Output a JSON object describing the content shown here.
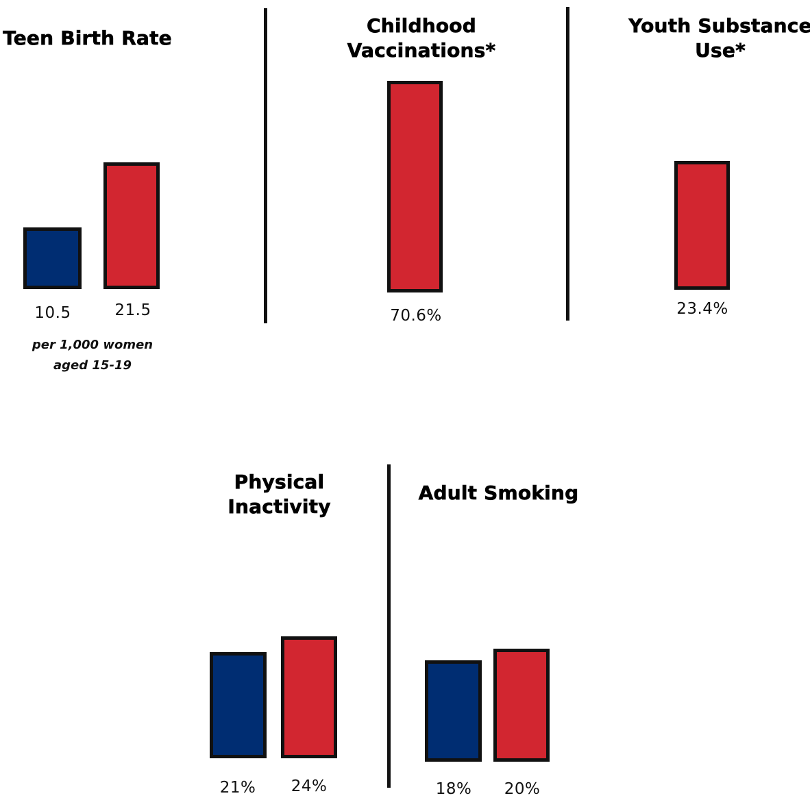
{
  "colors": {
    "blue": "#002D72",
    "red": "#D22630",
    "outline": "#111111"
  },
  "chart_data": [
    {
      "type": "bar",
      "title": "Teen Birth Rate",
      "categories": [
        "",
        ""
      ],
      "values": [
        10.5,
        21.5
      ],
      "value_labels": [
        "10.5",
        "21.5"
      ],
      "bar_colors": [
        "#002D72",
        "#D22630"
      ],
      "note": [
        "per 1,000 women",
        "aged 15-19"
      ]
    },
    {
      "type": "bar",
      "title": "Childhood Vaccinations*",
      "categories": [
        ""
      ],
      "values": [
        70.6
      ],
      "value_labels": [
        "70.6%"
      ],
      "bar_colors": [
        "#D22630"
      ]
    },
    {
      "type": "bar",
      "title": "Youth Substance Use*",
      "categories": [
        ""
      ],
      "values": [
        23.4
      ],
      "value_labels": [
        "23.4%"
      ],
      "bar_colors": [
        "#D22630"
      ]
    },
    {
      "type": "bar",
      "title": "Physical Inactivity",
      "categories": [
        "",
        ""
      ],
      "values": [
        21,
        24
      ],
      "value_labels": [
        "21%",
        "24%"
      ],
      "bar_colors": [
        "#002D72",
        "#D22630"
      ]
    },
    {
      "type": "bar",
      "title": "Adult Smoking",
      "categories": [
        "",
        ""
      ],
      "values": [
        18,
        20
      ],
      "value_labels": [
        "18%",
        "20%"
      ],
      "bar_colors": [
        "#002D72",
        "#D22630"
      ]
    }
  ],
  "titles": {
    "teen_birth": [
      "Teen Birth Rate"
    ],
    "vaccinations": [
      "Childhood",
      "Vaccinations*"
    ],
    "substance": [
      "Youth Substance",
      "Use*"
    ],
    "inactivity": [
      "Physical",
      "Inactivity"
    ],
    "smoking": [
      "Adult Smoking"
    ]
  }
}
